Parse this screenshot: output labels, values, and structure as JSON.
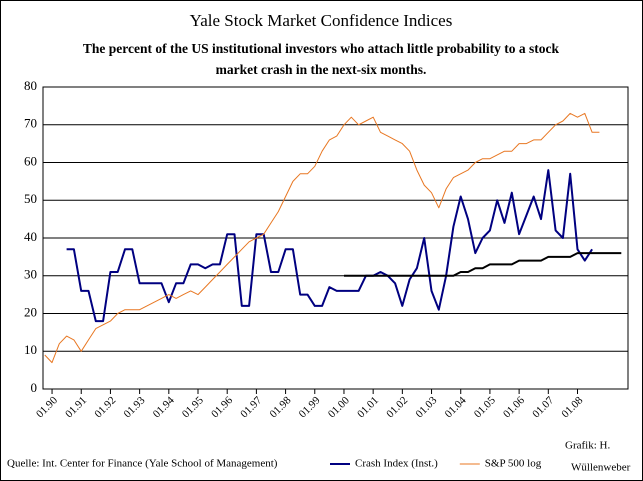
{
  "chart_data": {
    "type": "line",
    "title": "Yale Stock Market Confidence Indices",
    "subtitle": [
      "The percent of the US institutional investors who attach little probability to a stock",
      "market crash in the next-six months."
    ],
    "source": "Quelle: Int. Center for Finance (Yale School of Management)",
    "credit": [
      "Grafik: H.",
      "Wüllenweber"
    ],
    "x": [
      1989.75,
      1990,
      1990.25,
      1990.5,
      1990.75,
      1991,
      1991.25,
      1991.5,
      1991.75,
      1992,
      1992.25,
      1992.5,
      1992.75,
      1993,
      1993.25,
      1993.5,
      1993.75,
      1994,
      1994.25,
      1994.5,
      1994.75,
      1995,
      1995.25,
      1995.5,
      1995.75,
      1996,
      1996.25,
      1996.5,
      1996.75,
      1997,
      1997.25,
      1997.5,
      1997.75,
      1998,
      1998.25,
      1998.5,
      1998.75,
      1999,
      1999.25,
      1999.5,
      1999.75,
      2000,
      2000.25,
      2000.5,
      2000.75,
      2001,
      2001.25,
      2001.5,
      2001.75,
      2002,
      2002.25,
      2002.5,
      2002.75,
      2003,
      2003.25,
      2003.5,
      2003.75,
      2004,
      2004.25,
      2004.5,
      2004.75,
      2005,
      2005.25,
      2005.5,
      2005.75,
      2006,
      2006.25,
      2006.5,
      2006.75,
      2007,
      2007.25,
      2007.5,
      2007.75,
      2008,
      2008.25,
      2008.5,
      2008.75,
      2009,
      2009.25,
      2009.5
    ],
    "series": [
      {
        "name": "Crash Index (Inst.)",
        "color": "#000080",
        "values": [
          null,
          null,
          null,
          37,
          37,
          26,
          26,
          18,
          18,
          31,
          31,
          37,
          37,
          28,
          28,
          28,
          28,
          23,
          28,
          28,
          33,
          33,
          32,
          33,
          33,
          41,
          41,
          22,
          22,
          41,
          41,
          31,
          31,
          37,
          37,
          25,
          25,
          22,
          22,
          27,
          26,
          26,
          26,
          26,
          30,
          30,
          31,
          30,
          28,
          22,
          29,
          32,
          40,
          26,
          21,
          30,
          43,
          51,
          45,
          36,
          40,
          42,
          50,
          44,
          52,
          41,
          46,
          51,
          45,
          58,
          42,
          40,
          57,
          37,
          34,
          37,
          null,
          null,
          null,
          null
        ]
      },
      {
        "name": "S&P 500 log",
        "color": "#e87722",
        "values": [
          9,
          7,
          12,
          14,
          13,
          10,
          13,
          16,
          17,
          18,
          20,
          21,
          21,
          21,
          22,
          23,
          24,
          25,
          24,
          25,
          26,
          25,
          27,
          29,
          31,
          33,
          35,
          37,
          39,
          40,
          41,
          44,
          47,
          51,
          55,
          57,
          57,
          59,
          63,
          66,
          67,
          70,
          72,
          70,
          71,
          72,
          68,
          67,
          66,
          65,
          63,
          58,
          54,
          52,
          48,
          53,
          56,
          57,
          58,
          60,
          61,
          61,
          62,
          63,
          63,
          65,
          65,
          66,
          66,
          68,
          70,
          71,
          73,
          72,
          73,
          68,
          68,
          null,
          null,
          null
        ]
      },
      {
        "color": "#000000",
        "values": [
          null,
          null,
          null,
          null,
          null,
          null,
          null,
          null,
          null,
          null,
          null,
          null,
          null,
          null,
          null,
          null,
          null,
          null,
          null,
          null,
          null,
          null,
          null,
          null,
          null,
          null,
          null,
          null,
          null,
          null,
          null,
          null,
          null,
          null,
          null,
          null,
          null,
          null,
          null,
          null,
          null,
          30,
          30,
          30,
          30,
          30,
          30,
          30,
          30,
          30,
          30,
          30,
          30,
          30,
          30,
          30,
          30,
          31,
          31,
          32,
          32,
          33,
          33,
          33,
          33,
          34,
          34,
          34,
          34,
          35,
          35,
          35,
          35,
          36,
          36,
          36,
          36,
          36,
          36,
          36
        ]
      }
    ],
    "xlim": [
      1989.69,
      2009.73
    ],
    "xticks": [
      {
        "value": 1990,
        "label": "01.90"
      },
      {
        "value": 1991,
        "label": "01.91"
      },
      {
        "value": 1992,
        "label": "01.92"
      },
      {
        "value": 1993,
        "label": "01.93"
      },
      {
        "value": 1994,
        "label": "01.94"
      },
      {
        "value": 1995,
        "label": "01.95"
      },
      {
        "value": 1996,
        "label": "01.96"
      },
      {
        "value": 1997,
        "label": "01.97"
      },
      {
        "value": 1998,
        "label": "01.98"
      },
      {
        "value": 1999,
        "label": "01.99"
      },
      {
        "value": 2000,
        "label": "01.00"
      },
      {
        "value": 2001,
        "label": "01.01"
      },
      {
        "value": 2002,
        "label": "01.02"
      },
      {
        "value": 2003,
        "label": "01.03"
      },
      {
        "value": 2004,
        "label": "01.04"
      },
      {
        "value": 2005,
        "label": "01.05"
      },
      {
        "value": 2006,
        "label": "01.06"
      },
      {
        "value": 2007,
        "label": "01.07"
      },
      {
        "value": 2008,
        "label": "01.08"
      }
    ],
    "ylim": [
      0,
      80
    ],
    "yticks": [
      0,
      10,
      20,
      30,
      40,
      50,
      60,
      70,
      80
    ],
    "grid": true
  }
}
